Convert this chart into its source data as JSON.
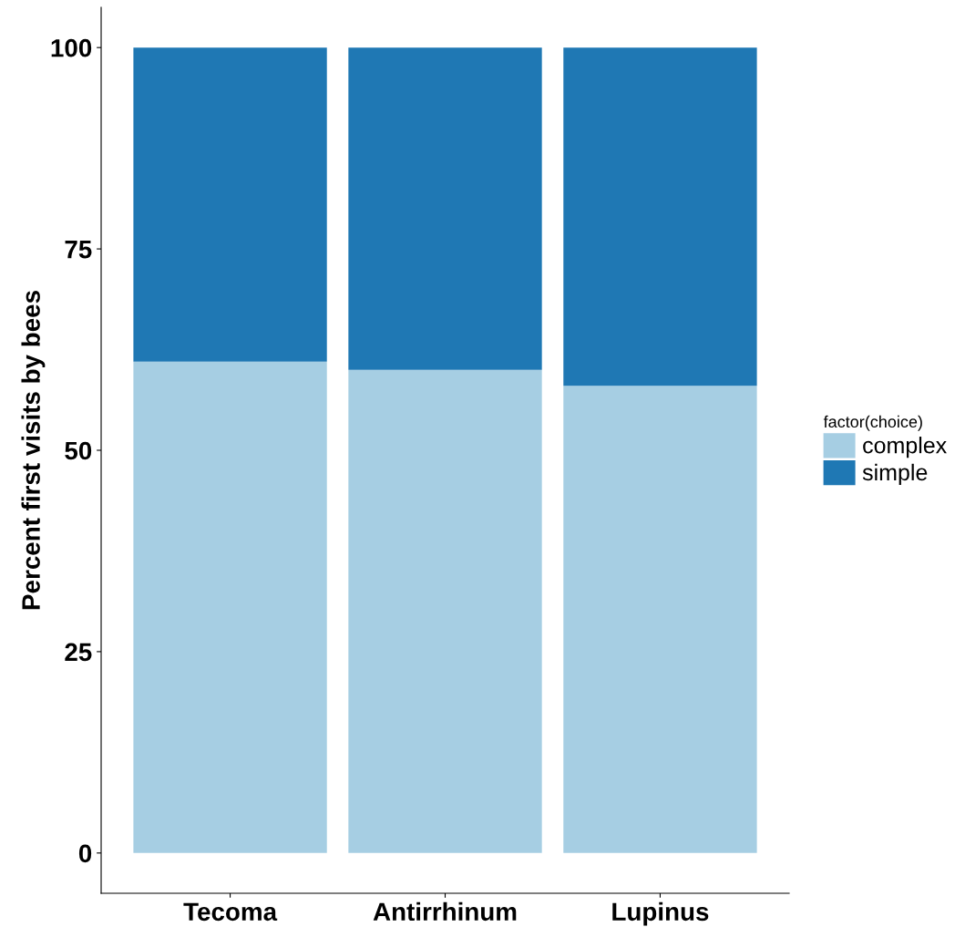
{
  "chart_data": {
    "type": "bar",
    "stacked": true,
    "ylabel": "Percent first visits by bees",
    "legend_title": "factor(choice)",
    "categories": [
      "Tecoma",
      "Antirrhinum",
      "Lupinus"
    ],
    "series": [
      {
        "name": "complex",
        "color": "#a6cee3",
        "values": [
          61,
          60,
          58
        ]
      },
      {
        "name": "simple",
        "color": "#1f78b4",
        "values": [
          39,
          40,
          42
        ]
      }
    ],
    "ylim": [
      -5,
      105
    ],
    "yticks": [
      0,
      25,
      50,
      75,
      100
    ],
    "grid": false,
    "legend": "right"
  }
}
